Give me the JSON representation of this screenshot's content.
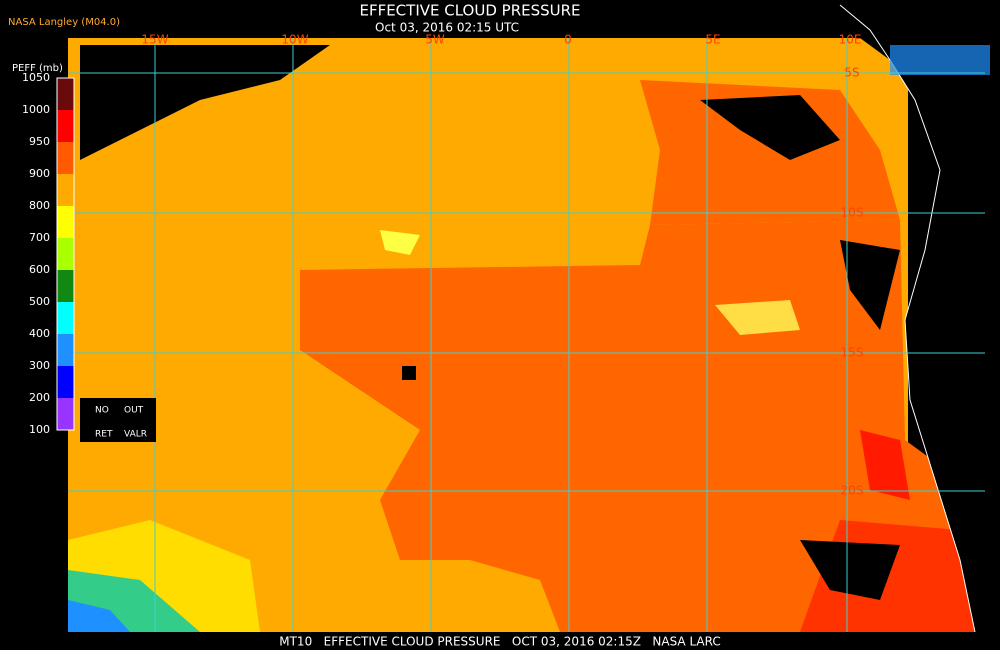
{
  "header": {
    "title": "EFFECTIVE CLOUD PRESSURE",
    "subtitle": "Oct 03, 2016 02:15 UTC",
    "source": "NASA Langley (M04.0)"
  },
  "legend": {
    "title": "PEFF (mb)",
    "labels": [
      "1050",
      "1000",
      "950",
      "900",
      "800",
      "700",
      "600",
      "500",
      "400",
      "300",
      "200",
      "100"
    ],
    "colors": [
      "#6a0a0a",
      "#ff0000",
      "#ff5a00",
      "#ffaa00",
      "#ffff00",
      "#aaff00",
      "#118811",
      "#00ffff",
      "#1e90ff",
      "#0000ff",
      "#9933ff"
    ],
    "notes": [
      "NO",
      "OUT",
      "RET",
      "VALR"
    ]
  },
  "grid": {
    "lon_labels": [
      "15W",
      "10W",
      "5W",
      "0",
      "5E",
      "10E"
    ],
    "lat_labels": [
      "5S",
      "10S",
      "15S",
      "20S"
    ]
  },
  "footer": "MT10   EFFECTIVE CLOUD PRESSURE   OCT 03, 2016 02:15Z   NASA LARC"
}
